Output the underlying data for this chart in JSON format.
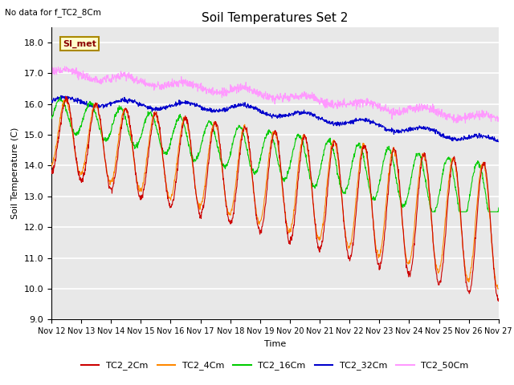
{
  "title": "Soil Temperatures Set 2",
  "xlabel": "Time",
  "ylabel": "Soil Temperature (C)",
  "ylim": [
    9.0,
    18.5
  ],
  "yticks": [
    9.0,
    10.0,
    11.0,
    12.0,
    13.0,
    14.0,
    15.0,
    16.0,
    17.0,
    18.0
  ],
  "x_start_day": 12,
  "x_end_day": 27,
  "x_tick_days": [
    12,
    13,
    14,
    15,
    16,
    17,
    18,
    19,
    20,
    21,
    22,
    23,
    24,
    25,
    26,
    27
  ],
  "colors": {
    "TC2_2Cm": "#cc0000",
    "TC2_4Cm": "#ff8800",
    "TC2_16Cm": "#00cc00",
    "TC2_32Cm": "#0000cc",
    "TC2_50Cm": "#ff99ff"
  },
  "top_left_text": "No data for f_TC2_8Cm",
  "inset_label": "SI_met",
  "background_color": "#ffffff",
  "plot_bg_color": "#e8e8e8",
  "grid_color": "#ffffff",
  "n_points": 1440
}
